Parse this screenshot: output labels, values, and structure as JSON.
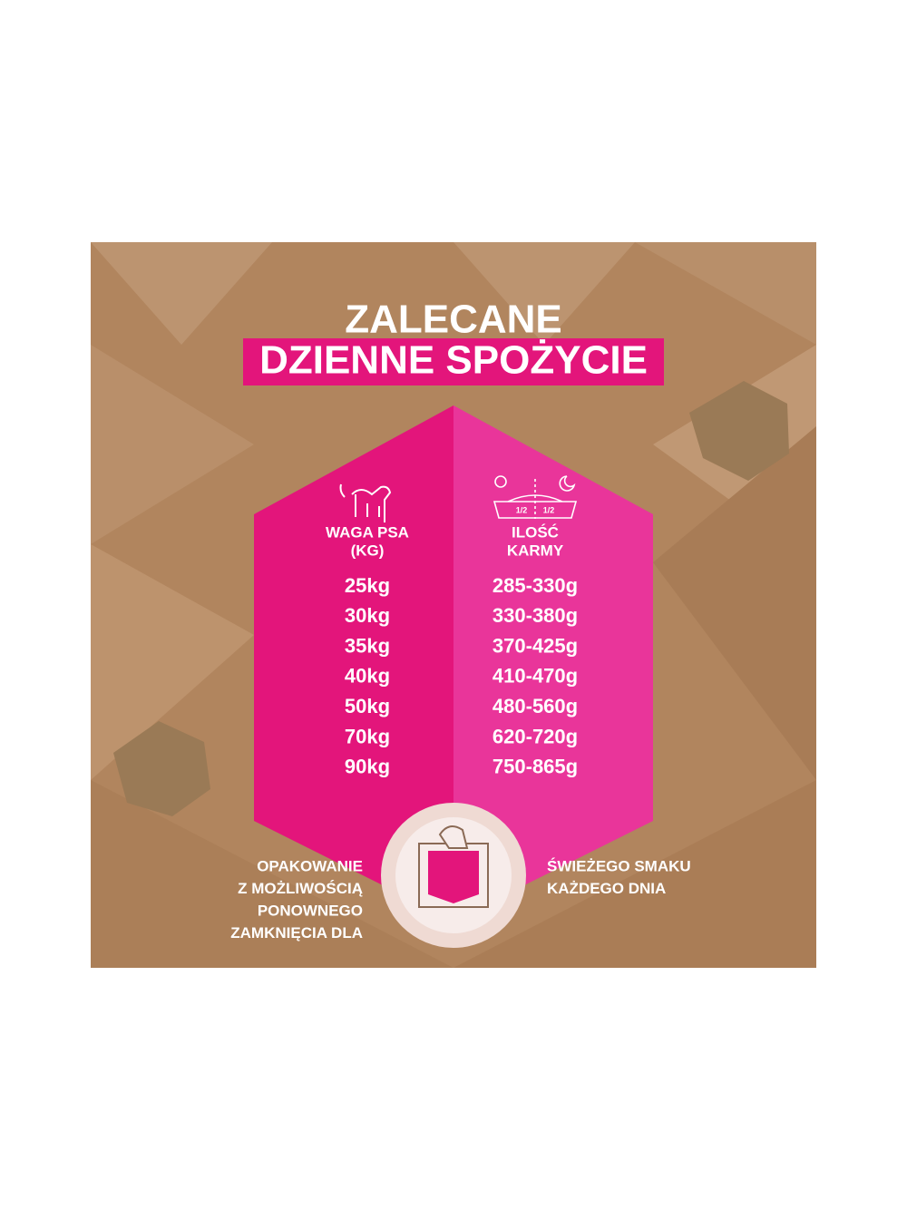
{
  "header": {
    "title_line1": "ZALECANE",
    "title_line2": "DZIENNE SPOŻYCIE"
  },
  "table": {
    "headers": [
      [
        "WAGA PSA",
        "(KG)"
      ],
      [
        "ILOŚĆ",
        "KARMY"
      ]
    ],
    "bowl_icon_labels": [
      "1/2",
      "1/2"
    ],
    "rows": [
      [
        "25kg",
        "285-330g"
      ],
      [
        "30kg",
        "330-380g"
      ],
      [
        "35kg",
        "370-425g"
      ],
      [
        "40kg",
        "410-470g"
      ],
      [
        "50kg",
        "480-560g"
      ],
      [
        "70kg",
        "620-720g"
      ],
      [
        "90kg",
        "750-865g"
      ]
    ]
  },
  "footer": {
    "left_note": [
      "OPAKOWANIE",
      "Z MOŻLIWOŚCIĄ",
      "PONOWNEGO",
      "ZAMKNIĘCIA DLA"
    ],
    "right_note": [
      "ŚWIEŻEGO SMAKU",
      "KAŻDEGO DNIA"
    ]
  }
}
